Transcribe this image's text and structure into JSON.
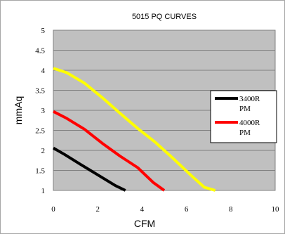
{
  "chart_data": {
    "type": "line",
    "title": "5015 PQ CURVES",
    "xlabel": "CFM",
    "ylabel": "mmAq",
    "xlim": [
      0,
      10
    ],
    "ylim": [
      1,
      5
    ],
    "x_ticks": [
      "0",
      "2",
      "4",
      "6",
      "8",
      "10"
    ],
    "y_ticks": [
      "1",
      "1.5",
      "2",
      "2.5",
      "3",
      "3.5",
      "4",
      "4.5",
      "5"
    ],
    "grid": true,
    "legend_position": "right",
    "series": [
      {
        "name": "3400RPM",
        "legend_lines": [
          "3400R",
          "PM"
        ],
        "color": "#000000",
        "points": [
          [
            0,
            2.06
          ],
          [
            0.5,
            1.9
          ],
          [
            1.2,
            1.66
          ],
          [
            2.0,
            1.39
          ],
          [
            2.8,
            1.12
          ],
          [
            3.25,
            1.0
          ]
        ]
      },
      {
        "name": "4000RPM",
        "legend_lines": [
          "4000R",
          "PM"
        ],
        "color": "#ff0000",
        "points": [
          [
            0,
            2.97
          ],
          [
            0.6,
            2.8
          ],
          [
            1.4,
            2.53
          ],
          [
            2.2,
            2.18
          ],
          [
            3.0,
            1.86
          ],
          [
            3.8,
            1.57
          ],
          [
            4.5,
            1.2
          ],
          [
            5.0,
            1.0
          ]
        ]
      },
      {
        "name": "",
        "legend_lines": [],
        "color": "#ffff00",
        "points": [
          [
            0,
            4.05
          ],
          [
            0.6,
            3.94
          ],
          [
            1.4,
            3.68
          ],
          [
            2.2,
            3.32
          ],
          [
            3.0,
            2.93
          ],
          [
            3.8,
            2.55
          ],
          [
            4.6,
            2.2
          ],
          [
            5.4,
            1.8
          ],
          [
            6.2,
            1.38
          ],
          [
            6.8,
            1.08
          ],
          [
            7.3,
            1.0
          ]
        ]
      }
    ]
  }
}
